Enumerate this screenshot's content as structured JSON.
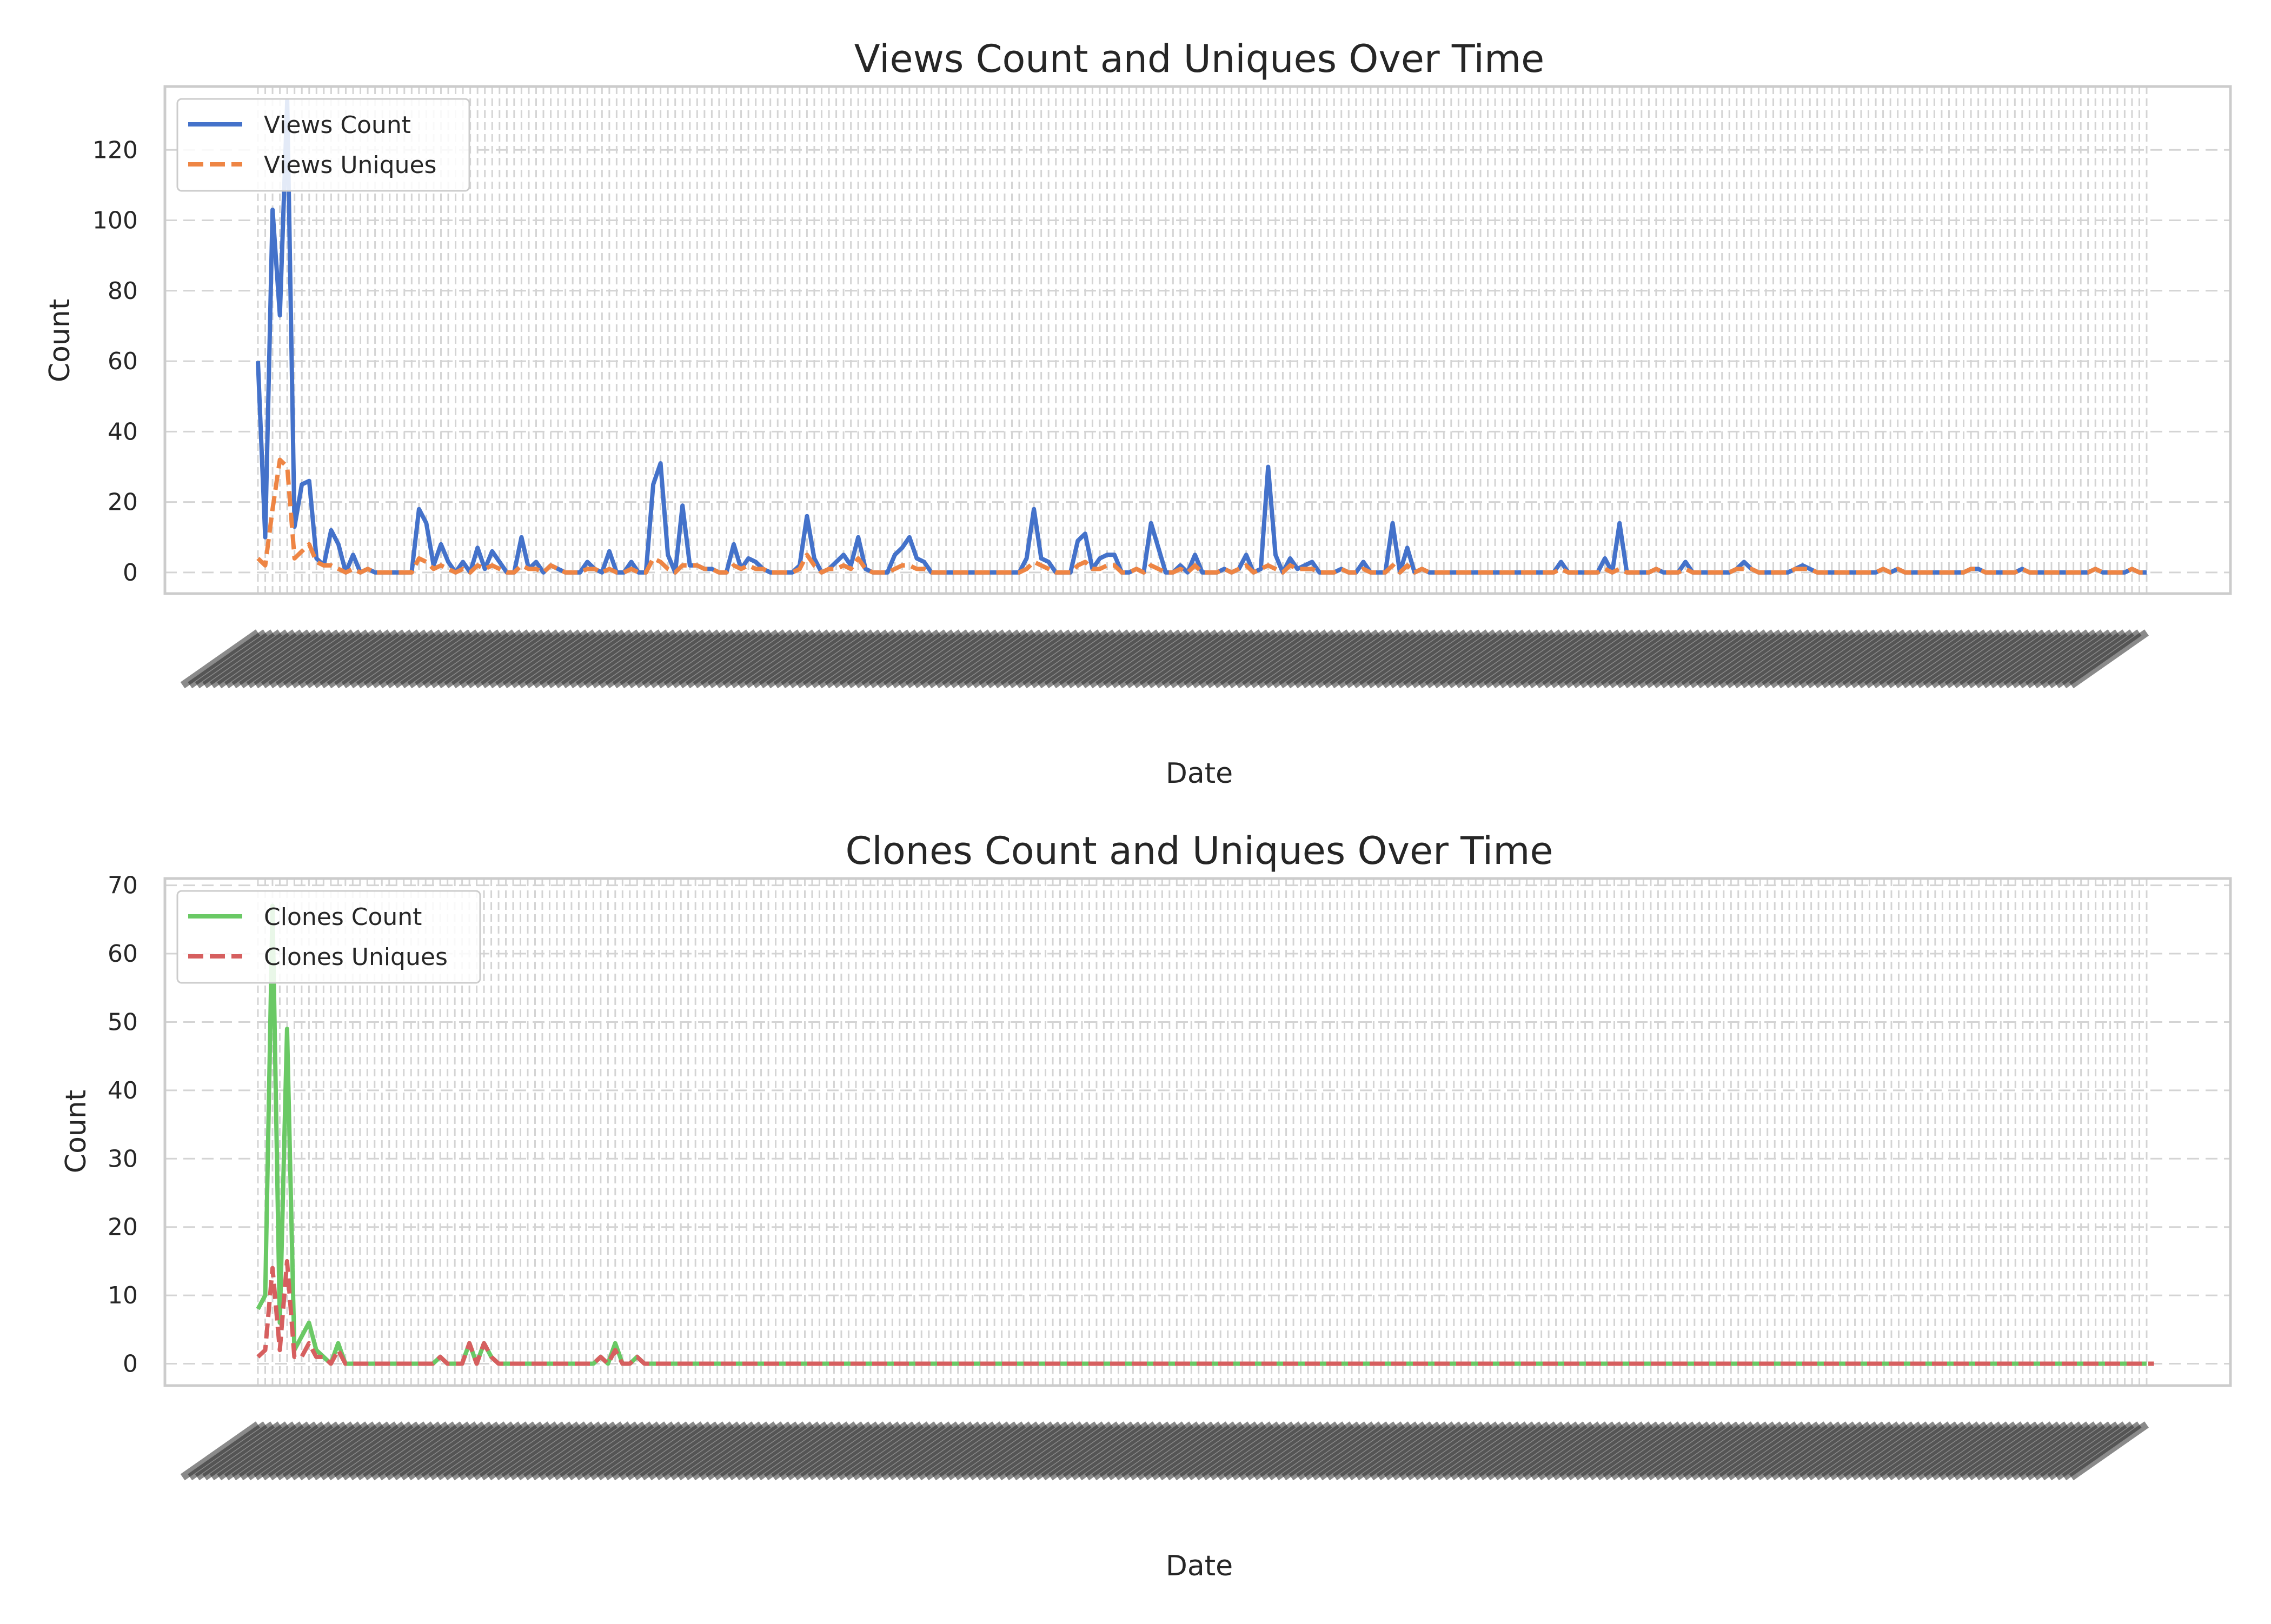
{
  "colors": {
    "views_count": "#4472ca",
    "views_uniques": "#ee8544",
    "clones_count": "#6ac965",
    "clones_uniques": "#d65f5f",
    "grid": "#d4d4d4",
    "frame": "#cccccc"
  },
  "chart_data": [
    {
      "type": "line",
      "title": "Views Count and Uniques Over Time",
      "xlabel": "Date",
      "ylabel": "Count",
      "ylim": [
        -6,
        138
      ],
      "yticks": [
        0,
        20,
        40,
        60,
        80,
        100,
        120
      ],
      "grid": true,
      "legend_position": "top-left",
      "series": [
        {
          "name": "Views Count",
          "style": "solid",
          "color_key": "views_count",
          "values": [
            60,
            10,
            103,
            73,
            134,
            13,
            25,
            26,
            4,
            2,
            12,
            8,
            0,
            5,
            0,
            1,
            0,
            0,
            0,
            0,
            0,
            0,
            18,
            14,
            2,
            8,
            3,
            0,
            3,
            0,
            7,
            1,
            6,
            3,
            0,
            0,
            10,
            1,
            3,
            0,
            2,
            1,
            0,
            0,
            0,
            3,
            1,
            0,
            6,
            0,
            0,
            3,
            0,
            0,
            25,
            31,
            5,
            0,
            19,
            2,
            2,
            1,
            1,
            0,
            0,
            8,
            1,
            4,
            3,
            1,
            0,
            0,
            0,
            0,
            2,
            16,
            4,
            0,
            1,
            3,
            5,
            2,
            10,
            1,
            0,
            0,
            0,
            5,
            7,
            10,
            4,
            3,
            0,
            0,
            0,
            0,
            0,
            0,
            0,
            0,
            0,
            0,
            0,
            0,
            0,
            4,
            18,
            4,
            3,
            0,
            0,
            0,
            9,
            11,
            1,
            4,
            5,
            5,
            0,
            0,
            1,
            0,
            14,
            7,
            0,
            0,
            2,
            0,
            5,
            0,
            0,
            0,
            1,
            0,
            1,
            5,
            0,
            1,
            30,
            5,
            0,
            4,
            1,
            2,
            3,
            0,
            0,
            0,
            1,
            0,
            0,
            3,
            0,
            0,
            0,
            14,
            0,
            7,
            0,
            1,
            0,
            0,
            0,
            0,
            0,
            0,
            0,
            0,
            0,
            0,
            0,
            0,
            0,
            0,
            0,
            0,
            0,
            0,
            3,
            0,
            0,
            0,
            0,
            0,
            4,
            0,
            14,
            0,
            0,
            0,
            0,
            1,
            0,
            0,
            0,
            3,
            0,
            0,
            0,
            0,
            0,
            0,
            1,
            3,
            1,
            0,
            0,
            0,
            0,
            0,
            1,
            2,
            1,
            0,
            0,
            0,
            0,
            0,
            0,
            0,
            0,
            0,
            1,
            0,
            1,
            0,
            0,
            0,
            0,
            0,
            0,
            0,
            0,
            0,
            1,
            1,
            0,
            0,
            0,
            0,
            0,
            1,
            0,
            0,
            0,
            0,
            0,
            0,
            0,
            0,
            0,
            1,
            0,
            0,
            0,
            0,
            1,
            0,
            0
          ]
        },
        {
          "name": "Views Uniques",
          "style": "dashed",
          "color_key": "views_uniques",
          "values": [
            4,
            2,
            18,
            32,
            30,
            4,
            6,
            8,
            3,
            2,
            2,
            1,
            0,
            1,
            0,
            1,
            0,
            0,
            0,
            0,
            0,
            0,
            4,
            3,
            1,
            2,
            1,
            0,
            1,
            0,
            2,
            1,
            2,
            1,
            0,
            0,
            2,
            1,
            1,
            0,
            2,
            1,
            0,
            0,
            0,
            1,
            1,
            0,
            1,
            0,
            0,
            1,
            0,
            0,
            4,
            3,
            1,
            0,
            2,
            2,
            2,
            1,
            1,
            0,
            0,
            2,
            1,
            2,
            1,
            1,
            0,
            0,
            0,
            0,
            1,
            5,
            2,
            0,
            1,
            1,
            2,
            1,
            4,
            1,
            0,
            0,
            0,
            1,
            2,
            2,
            1,
            1,
            0,
            0,
            0,
            0,
            0,
            0,
            0,
            0,
            0,
            0,
            0,
            0,
            0,
            1,
            3,
            2,
            1,
            0,
            0,
            0,
            2,
            3,
            1,
            1,
            2,
            2,
            0,
            0,
            1,
            0,
            2,
            1,
            0,
            0,
            1,
            0,
            2,
            0,
            0,
            0,
            1,
            0,
            1,
            2,
            0,
            1,
            2,
            1,
            0,
            2,
            1,
            1,
            1,
            0,
            0,
            0,
            1,
            0,
            0,
            1,
            0,
            0,
            0,
            2,
            0,
            2,
            0,
            1,
            0,
            0,
            0,
            0,
            0,
            0,
            0,
            0,
            0,
            0,
            0,
            0,
            0,
            0,
            0,
            0,
            0,
            0,
            1,
            0,
            0,
            0,
            0,
            0,
            1,
            0,
            1,
            0,
            0,
            0,
            0,
            1,
            0,
            0,
            0,
            1,
            0,
            0,
            0,
            0,
            0,
            0,
            1,
            1,
            1,
            0,
            0,
            0,
            0,
            0,
            1,
            1,
            1,
            0,
            0,
            0,
            0,
            0,
            0,
            0,
            0,
            0,
            1,
            0,
            1,
            0,
            0,
            0,
            0,
            0,
            0,
            0,
            0,
            0,
            1,
            1,
            0,
            0,
            0,
            0,
            0,
            1,
            0,
            0,
            0,
            0,
            0,
            0,
            0,
            0,
            0,
            1,
            0,
            0,
            0,
            0,
            1,
            0,
            0
          ]
        }
      ]
    },
    {
      "type": "line",
      "title": "Clones Count and Uniques Over Time",
      "xlabel": "Date",
      "ylabel": "Count",
      "ylim": [
        -3.2,
        71
      ],
      "yticks": [
        0,
        10,
        20,
        30,
        40,
        50,
        60,
        70
      ],
      "grid": true,
      "legend_position": "top-left",
      "series": [
        {
          "name": "Clones Count",
          "style": "solid",
          "color_key": "clones_count",
          "values": [
            8,
            10,
            67,
            6,
            49,
            2,
            4,
            6,
            2,
            1,
            0,
            3,
            0,
            0,
            0,
            0,
            0,
            0,
            0,
            0,
            0,
            0,
            0,
            0,
            0,
            1,
            0,
            0,
            0,
            3,
            0,
            3,
            1,
            0,
            0,
            0,
            0,
            0,
            0,
            0,
            0,
            0,
            0,
            0,
            0,
            0,
            0,
            1,
            0,
            3,
            0,
            0,
            1,
            0,
            0,
            0,
            0,
            0,
            0,
            0,
            0,
            0,
            0,
            0,
            0,
            0,
            0,
            0,
            0,
            0,
            0,
            0,
            0,
            0,
            0,
            0,
            0,
            0,
            0,
            0,
            0,
            0,
            0,
            0,
            0,
            0,
            0,
            0,
            0,
            0,
            0,
            0,
            0,
            0,
            0,
            0,
            0,
            0,
            0,
            0,
            0,
            0,
            0,
            0,
            0,
            0,
            0,
            0,
            0,
            0,
            0,
            0,
            0,
            0,
            0,
            0,
            0,
            0,
            0,
            0,
            0,
            0,
            0,
            0,
            0,
            0,
            0,
            0,
            0,
            0,
            0,
            0,
            0,
            0,
            0,
            0,
            0,
            0,
            0,
            0,
            0,
            0,
            0,
            0,
            0,
            0,
            0,
            0,
            0,
            0,
            0,
            0,
            0,
            0,
            0,
            0,
            0,
            0,
            0,
            0,
            0,
            0,
            0,
            0,
            0,
            0,
            0,
            0,
            0,
            0,
            0,
            0,
            0,
            0,
            0,
            0,
            0,
            0,
            0,
            0,
            0,
            0,
            0,
            0,
            0,
            0,
            0,
            0,
            0,
            0,
            0,
            0,
            0,
            0,
            0,
            0,
            0,
            0,
            0,
            0,
            0,
            0,
            0,
            0,
            0,
            0,
            0,
            0,
            0,
            0,
            0,
            0,
            0,
            0,
            0,
            0,
            0,
            0,
            0,
            0,
            0,
            0,
            0,
            0,
            0,
            0,
            0,
            0,
            0,
            0,
            0,
            0,
            0,
            0,
            0,
            0,
            0,
            0,
            0,
            0,
            0,
            0,
            0,
            0,
            0,
            0,
            0,
            0,
            0,
            0,
            0,
            0,
            0,
            0,
            0,
            0,
            0,
            0,
            0,
            0
          ]
        },
        {
          "name": "Clones Uniques",
          "style": "dashed",
          "color_key": "clones_uniques",
          "values": [
            1,
            2,
            14,
            2,
            15,
            1,
            1,
            3,
            1,
            1,
            0,
            2,
            0,
            0,
            0,
            0,
            0,
            0,
            0,
            0,
            0,
            0,
            0,
            0,
            0,
            1,
            0,
            0,
            0,
            3,
            0,
            3,
            1,
            0,
            0,
            0,
            0,
            0,
            0,
            0,
            0,
            0,
            0,
            0,
            0,
            0,
            0,
            1,
            0,
            2,
            0,
            0,
            1,
            0,
            0,
            0,
            0,
            0,
            0,
            0,
            0,
            0,
            0,
            0,
            0,
            0,
            0,
            0,
            0,
            0,
            0,
            0,
            0,
            0,
            0,
            0,
            0,
            0,
            0,
            0,
            0,
            0,
            0,
            0,
            0,
            0,
            0,
            0,
            0,
            0,
            0,
            0,
            0,
            0,
            0,
            0,
            0,
            0,
            0,
            0,
            0,
            0,
            0,
            0,
            0,
            0,
            0,
            0,
            0,
            0,
            0,
            0,
            0,
            0,
            0,
            0,
            0,
            0,
            0,
            0,
            0,
            0,
            0,
            0,
            0,
            0,
            0,
            0,
            0,
            0,
            0,
            0,
            0,
            0,
            0,
            0,
            0,
            0,
            0,
            0,
            0,
            0,
            0,
            0,
            0,
            0,
            0,
            0,
            0,
            0,
            0,
            0,
            0,
            0,
            0,
            0,
            0,
            0,
            0,
            0,
            0,
            0,
            0,
            0,
            0,
            0,
            0,
            0,
            0,
            0,
            0,
            0,
            0,
            0,
            0,
            0,
            0,
            0,
            0,
            0,
            0,
            0,
            0,
            0,
            0,
            0,
            0,
            0,
            0,
            0,
            0,
            0,
            0,
            0,
            0,
            0,
            0,
            0,
            0,
            0,
            0,
            0,
            0,
            0,
            0,
            0,
            0,
            0,
            0,
            0,
            0,
            0,
            0,
            0,
            0,
            0,
            0,
            0,
            0,
            0,
            0,
            0,
            0,
            0,
            0,
            0,
            0,
            0,
            0,
            0,
            0,
            0,
            0,
            0,
            0,
            0,
            0,
            0,
            0,
            0,
            0,
            0,
            0,
            0,
            0,
            0,
            0,
            0,
            0,
            0,
            0,
            0,
            0,
            0,
            0,
            0,
            0,
            0,
            0,
            0,
            0
          ]
        }
      ]
    }
  ]
}
